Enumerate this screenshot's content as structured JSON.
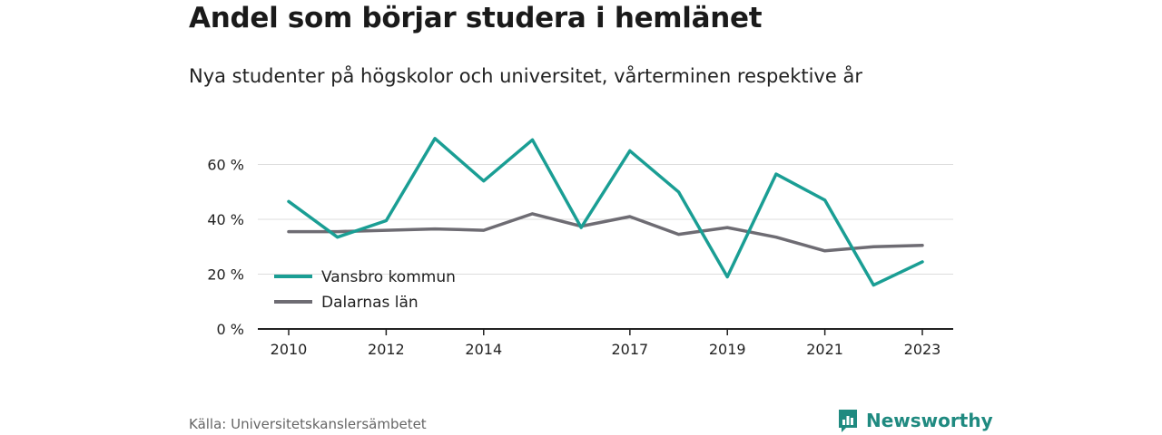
{
  "header": {
    "title": "Andel som börjar studera i hemlänet",
    "subtitle": "Nya studenter på högskolor och universitet, vårterminen respektive år"
  },
  "footer": {
    "source": "Källa: Universitetskanslersämbetet",
    "brand": "Newsworthy"
  },
  "colors": {
    "vansbro": "#1a9e94",
    "dalarna": "#6e6c73",
    "grid": "#dddddd",
    "axis": "#222222",
    "brand": "#1f8a80"
  },
  "icons": {
    "brand_logo": "bar-chart-speech-bubble-icon"
  },
  "chart_data": {
    "type": "line",
    "title": "Andel som börjar studera i hemlänet",
    "subtitle": "Nya studenter på högskolor och universitet, vårterminen respektive år",
    "xlabel": "",
    "ylabel": "",
    "x": [
      2010,
      2011,
      2012,
      2013,
      2014,
      2015,
      2016,
      2017,
      2018,
      2019,
      2020,
      2021,
      2022,
      2023
    ],
    "xticks": [
      2010,
      2012,
      2014,
      2017,
      2019,
      2021,
      2023
    ],
    "yticks": [
      0,
      20,
      40,
      60
    ],
    "ytick_labels": [
      "0 %",
      "20 %",
      "40 %",
      "60 %"
    ],
    "ylim": [
      0,
      75
    ],
    "grid": true,
    "legend": "bottom-left",
    "series": [
      {
        "name": "Vansbro kommun",
        "color": "#1a9e94",
        "values": [
          46.5,
          33.5,
          39.5,
          69.5,
          54,
          69,
          37,
          65,
          50,
          19,
          56.5,
          47,
          16,
          24.5
        ]
      },
      {
        "name": "Dalarnas län",
        "color": "#6e6c73",
        "values": [
          35.5,
          35.5,
          36,
          36.5,
          36,
          42,
          37.5,
          41,
          34.5,
          37,
          33.5,
          28.5,
          30,
          30.5
        ]
      }
    ]
  }
}
